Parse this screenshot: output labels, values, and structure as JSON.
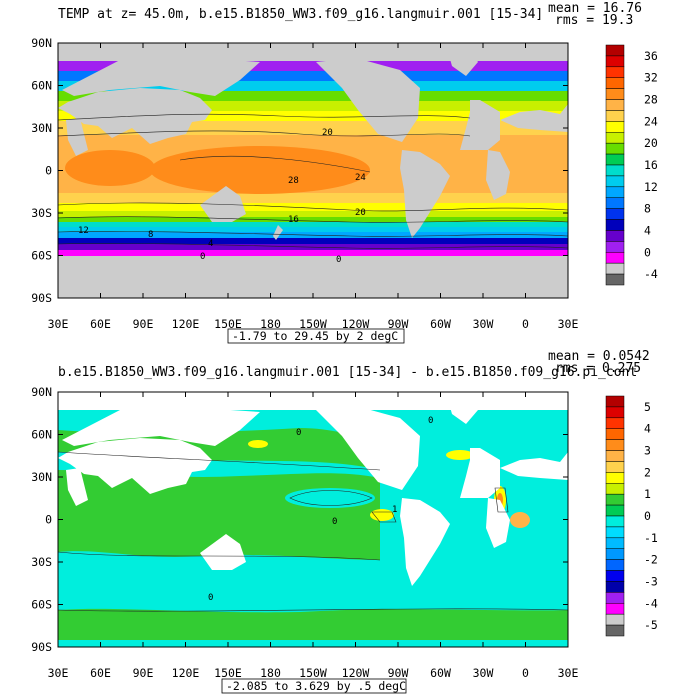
{
  "chart_data": [
    {
      "type": "heatmap",
      "title": "TEMP at z=  45.0m, b.e15.B1850_WW3.f09_g16.langmuir.001 [15-34]",
      "stats": [
        "mean = 16.76",
        "rms = 19.3"
      ],
      "range_note": "-1.79 to 29.45 by 2 degC",
      "x_ticks": [
        "30E",
        "60E",
        "90E",
        "120E",
        "150E",
        "180",
        "150W",
        "120W",
        "90W",
        "60W",
        "30W",
        "0",
        "30E"
      ],
      "y_ticks": [
        "90N",
        "60N",
        "30N",
        "0",
        "30S",
        "60S",
        "90S"
      ],
      "colorbar": {
        "labels": [
          "36",
          "32",
          "28",
          "24",
          "20",
          "16",
          "12",
          "8",
          "4",
          "0",
          "-4"
        ],
        "colors": [
          "#b30000",
          "#dd0000",
          "#ff3300",
          "#ff6600",
          "#ff8c1a",
          "#ffb347",
          "#ffd24d",
          "#ffff00",
          "#c8f000",
          "#66dd00",
          "#00cc55",
          "#00ddcc",
          "#00ccee",
          "#00a8ff",
          "#0077ff",
          "#0033ee",
          "#0000bb",
          "#6600cc",
          "#a020f0",
          "#ff00ff",
          "#cccccc",
          "#666666"
        ]
      },
      "contour_labels": [
        "28",
        "24",
        "20",
        "16",
        "12",
        "8",
        "4",
        "0"
      ],
      "units": "degC"
    },
    {
      "type": "heatmap",
      "title": "b.e15.B1850_WW3.f09_g16.langmuir.001 [15-34] - b.e15.B1850.f09_g16.pi_cont",
      "stats": [
        "mean = 0.0542",
        "rms = 0.275"
      ],
      "range_note": "-2.085 to 3.629 by .5 degC",
      "x_ticks": [
        "30E",
        "60E",
        "90E",
        "120E",
        "150E",
        "180",
        "150W",
        "120W",
        "90W",
        "60W",
        "30W",
        "0",
        "30E"
      ],
      "y_ticks": [
        "90N",
        "60N",
        "30N",
        "0",
        "30S",
        "60S",
        "90S"
      ],
      "colorbar": {
        "labels": [
          "5",
          "4",
          "3",
          "2",
          "1",
          "0",
          "-1",
          "-2",
          "-3",
          "-4",
          "-5"
        ],
        "colors": [
          "#b30000",
          "#dd0000",
          "#ff3300",
          "#ff6600",
          "#ff8c1a",
          "#ffb347",
          "#ffd24d",
          "#ffff00",
          "#c8f000",
          "#33cc33",
          "#00cc55",
          "#00eedd",
          "#00ddff",
          "#00bbff",
          "#0099ff",
          "#0066ff",
          "#0000ee",
          "#0000aa",
          "#a020f0",
          "#ff00ff",
          "#cccccc",
          "#666666"
        ]
      },
      "contour_labels": [
        "0",
        "1",
        "0",
        "0"
      ],
      "units": "degC"
    }
  ],
  "colors": {
    "land": "#cccccc",
    "land_diff": "#ffffff",
    "diff_neg": "#00eedd",
    "diff_zero": "#33cc33",
    "diff_pos": "#ffff00"
  }
}
